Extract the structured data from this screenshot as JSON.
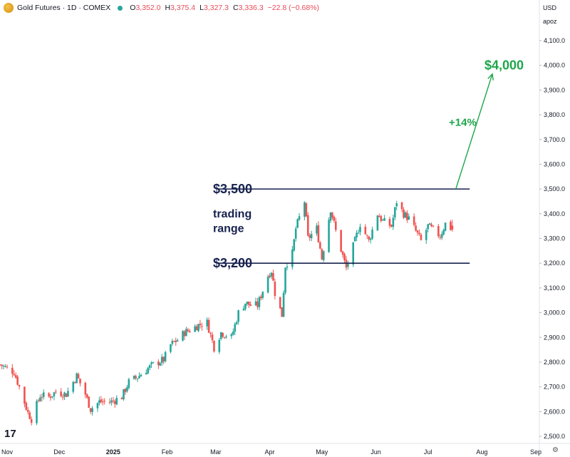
{
  "header": {
    "title": "Gold Futures · 1D · COMEX",
    "ohlc": [
      {
        "label": "O",
        "value": "3,352.0"
      },
      {
        "label": "H",
        "value": "3,375.4"
      },
      {
        "label": "L",
        "value": "3,327.3"
      },
      {
        "label": "C",
        "value": "3,336.3"
      },
      {
        "label": "",
        "value": "−22.8 (−0.68%)"
      }
    ]
  },
  "price_scale": {
    "currency": "USD",
    "unit": "apoz"
  },
  "colors": {
    "up": "#26a69a",
    "down": "#ef5350",
    "navy": "#17224f",
    "green": "#1ea64a"
  },
  "icons": {
    "symbol": "gold-coin-icon",
    "live": "live-dot-icon",
    "logo": "tradingview-logo-icon",
    "settings": "settings-icon"
  },
  "logo_text": "17",
  "settings_glyph": "⚙",
  "chart_data": {
    "type": "candlestick",
    "title": "Gold Futures · 1D · COMEX",
    "ylim": [
      2480,
      4250
    ],
    "y_ticks": [
      "2,500.0",
      "2,600.0",
      "2,700.0",
      "2,800.0",
      "2,900.0",
      "3,000.0",
      "3,100.0",
      "3,200.0",
      "3,300.0",
      "3,400.0",
      "3,500.0",
      "3,600.0",
      "3,700.0",
      "3,800.0",
      "3,900.0",
      "4,000.0",
      "4,100.0"
    ],
    "x_labels": [
      {
        "label": "Nov",
        "date": "2024-11-01"
      },
      {
        "label": "Dec",
        "date": "2024-12-01"
      },
      {
        "label": "2025",
        "date": "2025-01-01"
      },
      {
        "label": "Feb",
        "date": "2025-02-01"
      },
      {
        "label": "Mar",
        "date": "2025-03-01"
      },
      {
        "label": "Apr",
        "date": "2025-04-01"
      },
      {
        "label": "May",
        "date": "2025-05-01"
      },
      {
        "label": "Jun",
        "date": "2025-06-01"
      },
      {
        "label": "Jul",
        "date": "2025-07-01"
      },
      {
        "label": "Aug",
        "date": "2025-08-01"
      },
      {
        "label": "Sep",
        "date": "2025-09-01"
      }
    ],
    "x_start": "2024-11-01",
    "x_end": "2025-09-01",
    "closes": [
      {
        "date": "2024-10-28",
        "close": 2790
      },
      {
        "date": "2024-11-05",
        "close": 2760
      },
      {
        "date": "2024-11-08",
        "close": 2700
      },
      {
        "date": "2024-11-13",
        "close": 2595
      },
      {
        "date": "2024-11-15",
        "close": 2570
      },
      {
        "date": "2024-11-20",
        "close": 2665
      },
      {
        "date": "2024-11-25",
        "close": 2660
      },
      {
        "date": "2024-11-29",
        "close": 2680
      },
      {
        "date": "2024-12-05",
        "close": 2670
      },
      {
        "date": "2024-12-11",
        "close": 2745
      },
      {
        "date": "2024-12-16",
        "close": 2670
      },
      {
        "date": "2024-12-19",
        "close": 2610
      },
      {
        "date": "2024-12-24",
        "close": 2640
      },
      {
        "date": "2024-12-31",
        "close": 2640
      },
      {
        "date": "2025-01-06",
        "close": 2660
      },
      {
        "date": "2025-01-10",
        "close": 2720
      },
      {
        "date": "2025-01-15",
        "close": 2740
      },
      {
        "date": "2025-01-21",
        "close": 2775
      },
      {
        "date": "2025-01-24",
        "close": 2790
      },
      {
        "date": "2025-01-30",
        "close": 2810
      },
      {
        "date": "2025-02-03",
        "close": 2870
      },
      {
        "date": "2025-02-07",
        "close": 2890
      },
      {
        "date": "2025-02-11",
        "close": 2920
      },
      {
        "date": "2025-02-14",
        "close": 2930
      },
      {
        "date": "2025-02-19",
        "close": 2950
      },
      {
        "date": "2025-02-24",
        "close": 2960
      },
      {
        "date": "2025-02-28",
        "close": 2860
      },
      {
        "date": "2025-03-04",
        "close": 2920
      },
      {
        "date": "2025-03-10",
        "close": 2900
      },
      {
        "date": "2025-03-14",
        "close": 3000
      },
      {
        "date": "2025-03-18",
        "close": 3040
      },
      {
        "date": "2025-03-21",
        "close": 3030
      },
      {
        "date": "2025-03-25",
        "close": 3030
      },
      {
        "date": "2025-03-31",
        "close": 3150
      },
      {
        "date": "2025-04-02",
        "close": 3170
      },
      {
        "date": "2025-04-04",
        "close": 3080
      },
      {
        "date": "2025-04-08",
        "close": 2990
      },
      {
        "date": "2025-04-10",
        "close": 3190
      },
      {
        "date": "2025-04-14",
        "close": 3240
      },
      {
        "date": "2025-04-16",
        "close": 3340
      },
      {
        "date": "2025-04-21",
        "close": 3450
      },
      {
        "date": "2025-04-23",
        "close": 3300
      },
      {
        "date": "2025-04-28",
        "close": 3340
      },
      {
        "date": "2025-05-01",
        "close": 3220
      },
      {
        "date": "2025-05-06",
        "close": 3420
      },
      {
        "date": "2025-05-09",
        "close": 3330
      },
      {
        "date": "2025-05-13",
        "close": 3230
      },
      {
        "date": "2025-05-15",
        "close": 3180
      },
      {
        "date": "2025-05-20",
        "close": 3290
      },
      {
        "date": "2025-05-23",
        "close": 3360
      },
      {
        "date": "2025-05-28",
        "close": 3290
      },
      {
        "date": "2025-06-02",
        "close": 3400
      },
      {
        "date": "2025-06-05",
        "close": 3370
      },
      {
        "date": "2025-06-10",
        "close": 3350
      },
      {
        "date": "2025-06-13",
        "close": 3450
      },
      {
        "date": "2025-06-17",
        "close": 3400
      },
      {
        "date": "2025-06-20",
        "close": 3380
      },
      {
        "date": "2025-06-24",
        "close": 3330
      },
      {
        "date": "2025-06-27",
        "close": 3290
      },
      {
        "date": "2025-07-01",
        "close": 3350
      },
      {
        "date": "2025-07-03",
        "close": 3340
      },
      {
        "date": "2025-07-08",
        "close": 3310
      },
      {
        "date": "2025-07-11",
        "close": 3360
      },
      {
        "date": "2025-07-15",
        "close": 3336
      }
    ],
    "last_candle": {
      "date": "2025-07-15",
      "open": 3352.0,
      "high": 3375.4,
      "low": 3327.3,
      "close": 3336.3
    },
    "annotations": [
      {
        "text": "$3,500",
        "price": 3500,
        "line_from": "2025-03-02",
        "line_to": "2025-07-25"
      },
      {
        "text": "$3,200",
        "price": 3200,
        "line_from": "2025-03-02",
        "line_to": "2025-07-25"
      },
      {
        "text": "trading",
        "price": 3400
      },
      {
        "text": "range",
        "price": 3340
      },
      {
        "text": "+14%",
        "price": 3770
      },
      {
        "text": "$4,000",
        "price": 4000
      }
    ],
    "projection_arrow": {
      "from": {
        "date": "2025-07-17",
        "price": 3500
      },
      "to": {
        "date": "2025-08-07",
        "price": 3965
      }
    }
  }
}
